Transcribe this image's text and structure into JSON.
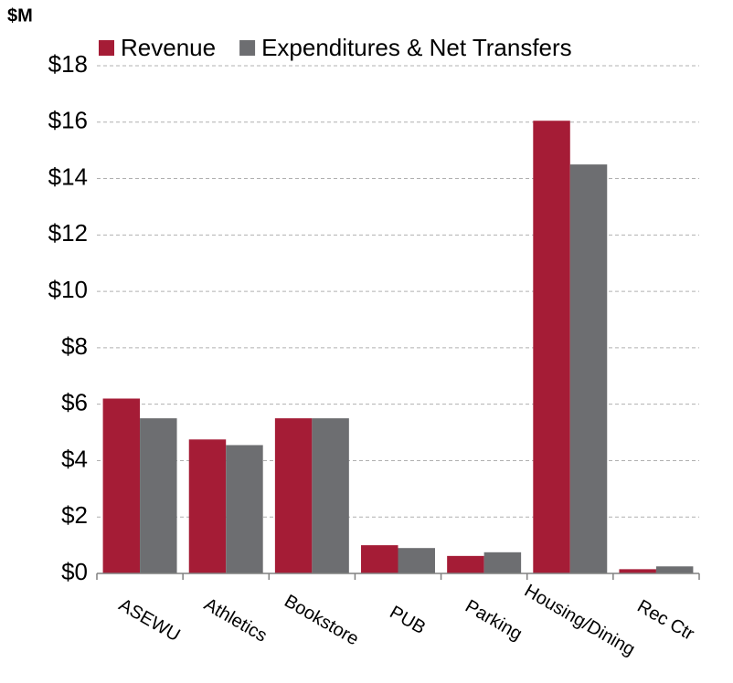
{
  "chart_data": {
    "type": "bar",
    "y_label": "$M",
    "categories": [
      "ASEWU",
      "Athletics",
      "Bookstore",
      "PUB",
      "Parking",
      "Housing/Dining",
      "Rec Ctr"
    ],
    "series": [
      {
        "name": "Revenue",
        "color": "#a51c36",
        "values": [
          6.2,
          4.75,
          5.5,
          1.0,
          0.62,
          16.05,
          0.15
        ]
      },
      {
        "name": "Expenditures & Net Transfers",
        "color": "#6d6e71",
        "values": [
          5.5,
          4.55,
          5.5,
          0.9,
          0.75,
          14.5,
          0.25
        ]
      }
    ],
    "ylim": [
      0,
      18
    ],
    "yticks": [
      {
        "value": 0,
        "label": "$0"
      },
      {
        "value": 2,
        "label": "$2"
      },
      {
        "value": 4,
        "label": "$4"
      },
      {
        "value": 6,
        "label": "$6"
      },
      {
        "value": 8,
        "label": "$8"
      },
      {
        "value": 10,
        "label": "$10"
      },
      {
        "value": 12,
        "label": "$12"
      },
      {
        "value": 14,
        "label": "$14"
      },
      {
        "value": 16,
        "label": "$16"
      },
      {
        "value": 18,
        "label": "$18"
      }
    ],
    "grid": true,
    "legend": "top"
  }
}
